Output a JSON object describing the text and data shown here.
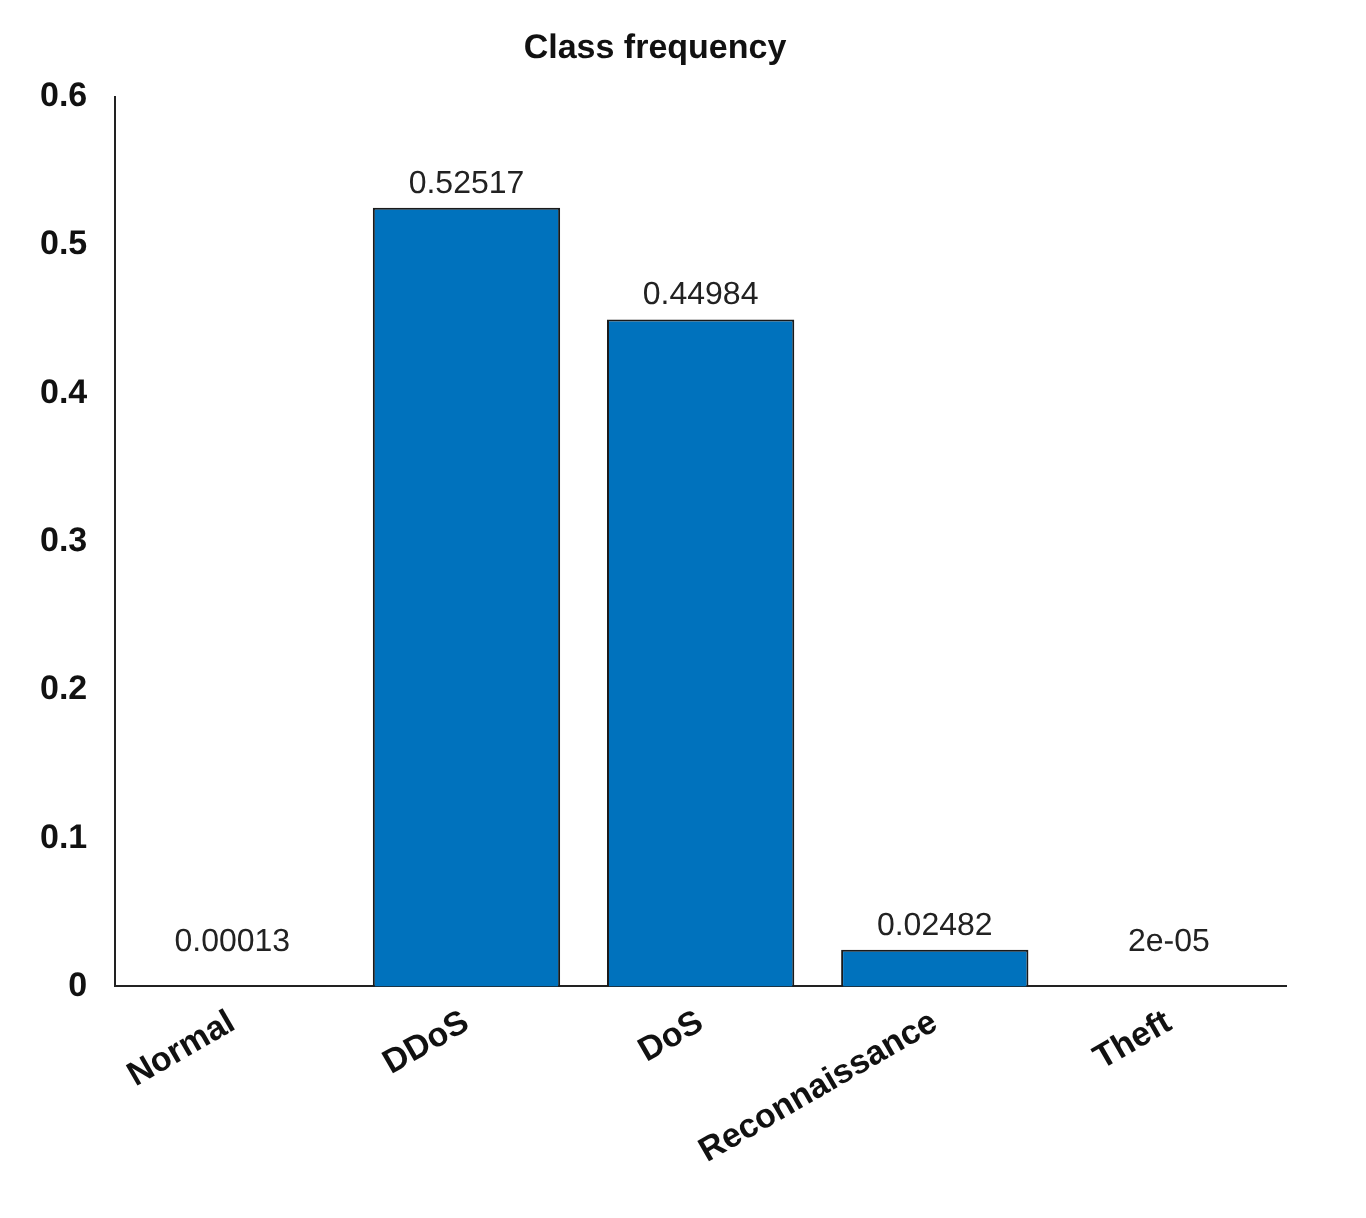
{
  "chart_data": {
    "type": "bar",
    "title": "Class frequency",
    "categories": [
      "Normal",
      "DDoS",
      "DoS",
      "Reconnaissance",
      "Theft"
    ],
    "values": [
      0.00013,
      0.52517,
      0.44984,
      0.02482,
      2e-05
    ],
    "value_labels": [
      "0.00013",
      "0.52517",
      "0.44984",
      "0.02482",
      "2e-05"
    ],
    "color": "#0072bd",
    "ylim": [
      0,
      0.6
    ],
    "yticks": [
      0,
      0.1,
      0.2,
      0.3,
      0.4,
      0.5,
      0.6
    ],
    "grid": false,
    "legend": false
  }
}
